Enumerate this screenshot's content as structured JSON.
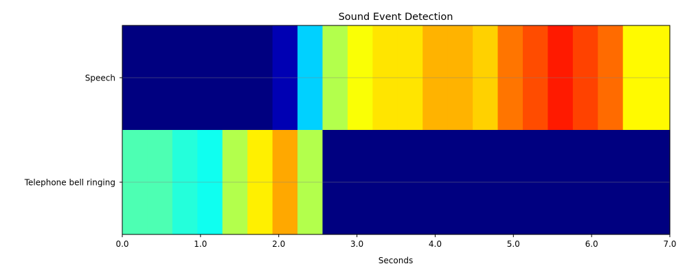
{
  "chart_data": {
    "type": "heatmap",
    "title": "Sound Event Detection",
    "xlabel": "Seconds",
    "ylabel": "",
    "xlim": [
      0.0,
      7.0
    ],
    "x_ticks": [
      "0.0",
      "1.0",
      "2.0",
      "3.0",
      "4.0",
      "5.0",
      "6.0",
      "7.0"
    ],
    "x_tick_values": [
      0,
      1,
      2,
      3,
      4,
      5,
      6,
      7
    ],
    "colormap": "jet",
    "value_range": [
      0,
      1
    ],
    "frame_edges": [
      0.0,
      0.32,
      0.64,
      0.96,
      1.28,
      1.6,
      1.92,
      2.24,
      2.56,
      2.88,
      3.2,
      3.52,
      3.84,
      4.16,
      4.48,
      4.8,
      5.12,
      5.44,
      5.76,
      6.08,
      6.4,
      6.72,
      7.0
    ],
    "rows": [
      {
        "label": "Speech",
        "values": [
          0.0,
          0.0,
          0.0,
          0.0,
          0.0,
          0.0,
          0.05,
          0.33,
          0.55,
          0.62,
          0.65,
          0.65,
          0.7,
          0.7,
          0.67,
          0.76,
          0.8,
          0.85,
          0.81,
          0.77,
          0.63,
          0.63
        ]
      },
      {
        "label": "Telephone bell ringing",
        "values": [
          0.45,
          0.45,
          0.41,
          0.39,
          0.55,
          0.64,
          0.71,
          0.55,
          0.0,
          0.0,
          0.0,
          0.0,
          0.0,
          0.0,
          0.0,
          0.0,
          0.0,
          0.0,
          0.0,
          0.0,
          0.0,
          0.0
        ]
      }
    ]
  }
}
